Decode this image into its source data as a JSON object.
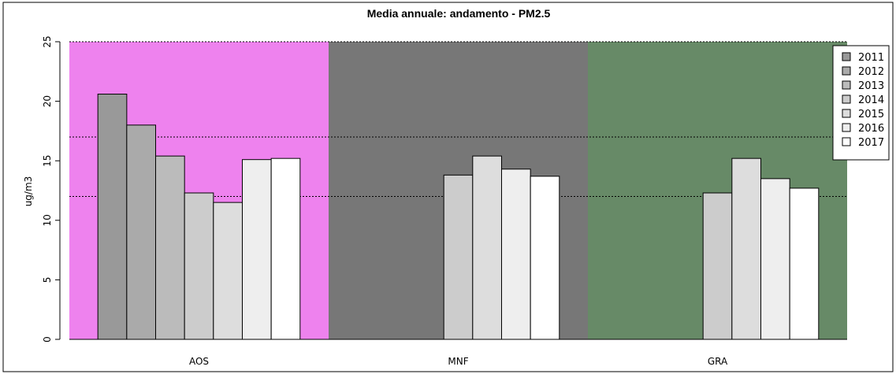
{
  "chart_data": {
    "type": "bar",
    "title": "Media annuale: andamento - PM2.5",
    "ylabel": "ug/m3",
    "xlabel": "",
    "ylim": [
      0,
      25
    ],
    "yticks": [
      "0",
      "5",
      "10",
      "15",
      "20",
      "25"
    ],
    "categories": [
      "AOS",
      "MNF",
      "GRA"
    ],
    "panel_colors": [
      "#ee82ee",
      "#777777",
      "#678a67"
    ],
    "series": [
      {
        "name": "2011",
        "color": "#999999",
        "values": [
          20.6,
          null,
          null
        ]
      },
      {
        "name": "2012",
        "color": "#aaaaaa",
        "values": [
          18.0,
          null,
          null
        ]
      },
      {
        "name": "2013",
        "color": "#bbbbbb",
        "values": [
          15.4,
          null,
          null
        ]
      },
      {
        "name": "2014",
        "color": "#cccccc",
        "values": [
          12.3,
          13.8,
          12.3
        ]
      },
      {
        "name": "2015",
        "color": "#dddddd",
        "values": [
          11.5,
          15.4,
          15.2
        ]
      },
      {
        "name": "2016",
        "color": "#eeeeee",
        "values": [
          15.1,
          14.3,
          13.5
        ]
      },
      {
        "name": "2017",
        "color": "#ffffff",
        "values": [
          15.2,
          13.7,
          12.7
        ]
      }
    ],
    "reference_lines": [
      17,
      12,
      25
    ],
    "grid": false,
    "legend_position": "top-right"
  }
}
